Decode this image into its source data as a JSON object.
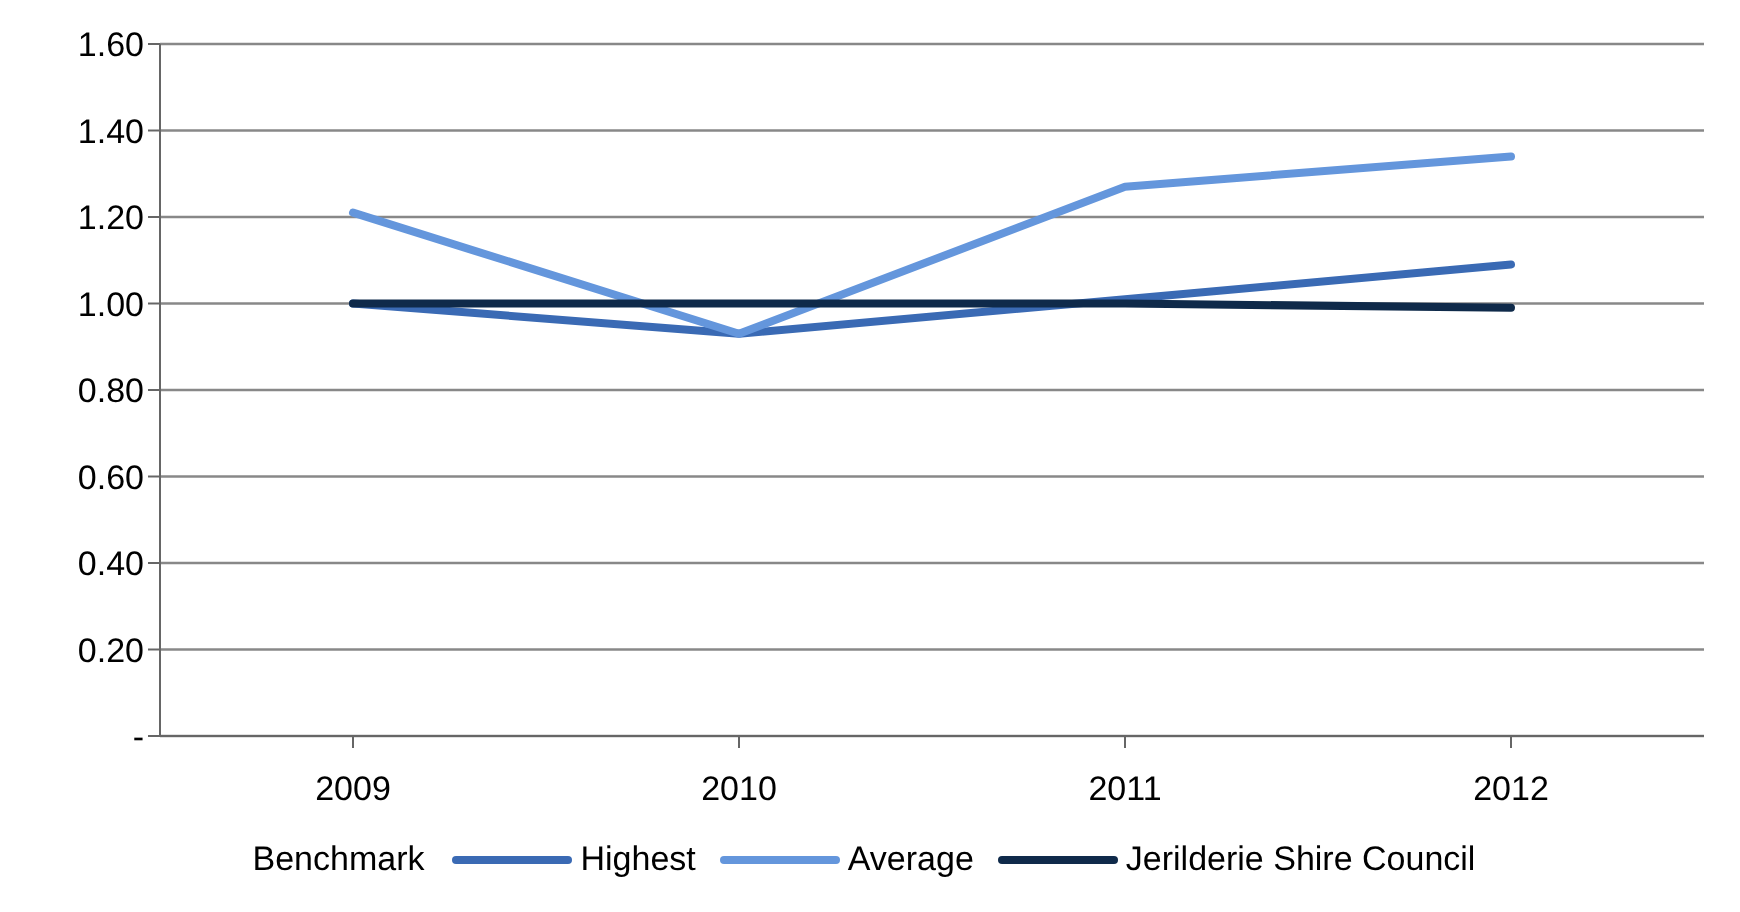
{
  "chart_data": {
    "type": "line",
    "categories": [
      "2009",
      "2010",
      "2011",
      "2012"
    ],
    "legend_title": "Benchmark",
    "series": [
      {
        "name": "Highest",
        "color": "#3a6ab4",
        "values": [
          1.0,
          0.93,
          1.01,
          1.09
        ]
      },
      {
        "name": "Average",
        "color": "#6496dc",
        "values": [
          1.21,
          0.93,
          1.27,
          1.34
        ]
      },
      {
        "name": "Jerilderie Shire Council",
        "color": "#0f2a4a",
        "values": [
          1.0,
          1.0,
          1.0,
          0.99
        ]
      }
    ],
    "ylim": [
      0,
      1.6
    ],
    "yticks": [
      {
        "value": 0,
        "label": "-"
      },
      {
        "value": 0.2,
        "label": "0.20"
      },
      {
        "value": 0.4,
        "label": "0.40"
      },
      {
        "value": 0.6,
        "label": "0.60"
      },
      {
        "value": 0.8,
        "label": "0.80"
      },
      {
        "value": 1,
        "label": "1.00"
      },
      {
        "value": 1.2,
        "label": "1.20"
      },
      {
        "value": 1.4,
        "label": "1.40"
      },
      {
        "value": 1.6,
        "label": "1.60"
      }
    ],
    "grid": "y",
    "legend": "bottom",
    "marker": "none",
    "line_style": "solid"
  }
}
